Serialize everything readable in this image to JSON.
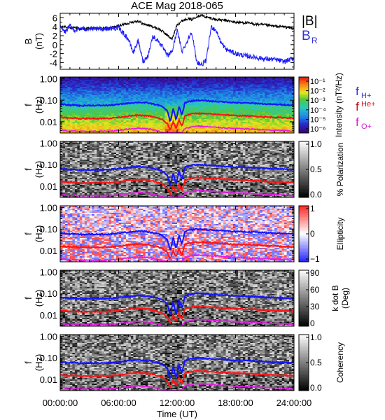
{
  "title": "ACE Mag 2018-065",
  "chart_data": [
    {
      "type": "line",
      "panel": "magnetic-field",
      "ylabel": "B",
      "yunit": "(nT)",
      "ylim": [
        -5.5,
        7
      ],
      "yticks": [
        6,
        4,
        2,
        0,
        -2,
        -4
      ],
      "xlim": [
        0,
        24
      ],
      "series": [
        {
          "name": "|B|",
          "color": "#000000",
          "x": [
            0,
            0.5,
            1,
            1.5,
            2,
            3,
            4,
            5,
            6,
            7,
            7.5,
            8,
            8.5,
            9,
            9.5,
            10,
            10.5,
            11,
            11.5,
            12,
            12.5,
            13,
            13.5,
            14,
            14.5,
            15,
            15.5,
            16,
            17,
            18,
            19,
            20,
            21,
            22,
            23,
            24
          ],
          "y": [
            3.8,
            4.1,
            3.6,
            3.9,
            3.5,
            3.6,
            3.6,
            3.7,
            4.2,
            4.8,
            5.1,
            5.3,
            4.6,
            4.4,
            4.0,
            3.6,
            3.0,
            2.1,
            1.2,
            4.5,
            5.3,
            5.8,
            5.6,
            6.3,
            6.6,
            6.1,
            5.9,
            5.6,
            5.4,
            5.0,
            4.9,
            4.6,
            4.4,
            4.1,
            4.0,
            3.6
          ]
        },
        {
          "name": "B_R",
          "color": "#1a1aff",
          "x": [
            0,
            0.5,
            1,
            1.5,
            2,
            3,
            4,
            5,
            6,
            6.5,
            7,
            7.5,
            8,
            8.5,
            9,
            9.5,
            10,
            10.5,
            11,
            11.5,
            12,
            12.5,
            13,
            13.5,
            14,
            14.5,
            15,
            15.5,
            16,
            16.5,
            17,
            18,
            19,
            20,
            21,
            22,
            23,
            24
          ],
          "y": [
            3.9,
            2.8,
            4.2,
            3.2,
            3.6,
            3.5,
            3.5,
            3.6,
            3.7,
            2.5,
            1.2,
            -1.8,
            0.9,
            -3.8,
            -2.5,
            1.8,
            1.0,
            -0.5,
            -2.5,
            -1.5,
            3.2,
            -1.5,
            0.5,
            3.0,
            -3.8,
            -4.5,
            -3.5,
            4.0,
            3.2,
            0.5,
            -1.0,
            -2.0,
            -2.5,
            -2.8,
            -3.2,
            -3.3,
            -3.8,
            -3.0
          ]
        }
      ],
      "legend": [
        "|B|",
        "B_R"
      ],
      "legend_position": "right"
    },
    {
      "type": "heatmap",
      "panel": "intensity",
      "ylabel": "f",
      "yunit": "(Hz)",
      "colorbar_label": "Intensity (nT²/Hz)",
      "colorbar_ticks": [
        "10⁻¹",
        "10⁻²",
        "10⁻³",
        "10⁻⁴",
        "10⁻⁵",
        "10⁻⁶"
      ],
      "colormap": "rainbow",
      "yscale": "log"
    },
    {
      "type": "heatmap",
      "panel": "polarization",
      "ylabel": "f",
      "yunit": "(Hz)",
      "colorbar_label": "% Polarization",
      "colorbar_ticks": [
        "1.0",
        "0.5",
        "0.0"
      ],
      "colormap": "gray",
      "yscale": "log"
    },
    {
      "type": "heatmap",
      "panel": "ellipticity",
      "ylabel": "f",
      "yunit": "(Hz)",
      "colorbar_label": "Ellipticity",
      "colorbar_ticks": [
        "1",
        "0",
        "−1"
      ],
      "colormap": "blue-white-red",
      "yscale": "log"
    },
    {
      "type": "heatmap",
      "panel": "k-dot-b",
      "ylabel": "f",
      "yunit": "(Hz)",
      "colorbar_label": "k dot B",
      "colorbar_unit": "(Deg)",
      "colorbar_ticks": [
        "90",
        "60",
        "30",
        "0"
      ],
      "colormap": "gray",
      "yscale": "log"
    },
    {
      "type": "heatmap",
      "panel": "coherency",
      "ylabel": "f",
      "yunit": "(Hz)",
      "colorbar_label": "Coherency",
      "colorbar_ticks": [
        "1.0",
        "0.5",
        "0.0"
      ],
      "colormap": "gray",
      "yscale": "log"
    }
  ],
  "freq_axis": {
    "ticks": [
      1.0,
      0.1,
      0.01
    ],
    "tick_labels": [
      "1.00",
      "0.10",
      "0.01"
    ],
    "ylim": [
      0.003,
      1.2
    ]
  },
  "gyro_lines": {
    "x": [
      0,
      0.5,
      1,
      1.5,
      2,
      3,
      4,
      5,
      6,
      7,
      8,
      9,
      9.5,
      10,
      10.5,
      11,
      11.3,
      11.6,
      11.9,
      12.2,
      12.5,
      12.8,
      13.1,
      13.4,
      13.7,
      14,
      15,
      16,
      17,
      18,
      19,
      20,
      21,
      22,
      23,
      24
    ],
    "series": [
      {
        "name": "f_H+",
        "color": "#1414ff",
        "y": [
          0.066,
          0.062,
          0.058,
          0.061,
          0.055,
          0.057,
          0.057,
          0.058,
          0.064,
          0.073,
          0.08,
          0.075,
          0.068,
          0.06,
          0.05,
          0.032,
          0.01,
          0.04,
          0.012,
          0.05,
          0.02,
          0.075,
          0.085,
          0.09,
          0.095,
          0.1,
          0.094,
          0.087,
          0.083,
          0.076,
          0.075,
          0.072,
          0.067,
          0.064,
          0.062,
          0.058
        ]
      },
      {
        "name": "f_He+",
        "color": "#ff1414",
        "y": [
          0.0165,
          0.0155,
          0.0145,
          0.0152,
          0.0138,
          0.0143,
          0.0143,
          0.0145,
          0.016,
          0.0183,
          0.02,
          0.0188,
          0.017,
          0.015,
          0.0125,
          0.008,
          0.004,
          0.01,
          0.005,
          0.0125,
          0.006,
          0.019,
          0.021,
          0.0225,
          0.024,
          0.025,
          0.0235,
          0.022,
          0.021,
          0.019,
          0.0188,
          0.018,
          0.0168,
          0.016,
          0.0155,
          0.0145
        ]
      },
      {
        "name": "f_O+",
        "color": "#e619e6",
        "y": [
          0.0041,
          0.0039,
          0.0036,
          0.0038,
          0.0035,
          0.0036,
          0.0036,
          0.0036,
          0.004,
          0.0046,
          0.005,
          0.0047,
          0.0043,
          0.0038,
          0.0032,
          0.0031,
          0.0031,
          0.0031,
          0.0031,
          0.0031,
          0.0031,
          0.0048,
          0.0053,
          0.0056,
          0.006,
          0.0063,
          0.0059,
          0.0055,
          0.0052,
          0.0048,
          0.0047,
          0.0045,
          0.0042,
          0.004,
          0.0039,
          0.0036
        ]
      }
    ],
    "legend": [
      "f_H+",
      "f_He+",
      "f_O+"
    ]
  },
  "legend_labels": {
    "B": "|B|",
    "BR_main": "B",
    "BR_sub": "R",
    "fH_main": "f",
    "fH_sub": "H+",
    "fHe_main": "f",
    "fHe_sub": "He+",
    "fO_main": "f",
    "fO_sub": "O+"
  },
  "x_axis": {
    "label": "Time (UT)",
    "ticks": [
      0,
      6,
      12,
      18,
      24
    ],
    "tick_labels": [
      "00:00:00",
      "06:00:00",
      "12:00:00",
      "18:00:00",
      "24:00:00"
    ]
  },
  "colors": {
    "blue": "#1414ff",
    "red": "#ff1414",
    "magenta": "#e619e6",
    "legend_blue": "#3535d8",
    "legend_red": "#c8141e",
    "legend_magenta": "#d41ed4"
  }
}
